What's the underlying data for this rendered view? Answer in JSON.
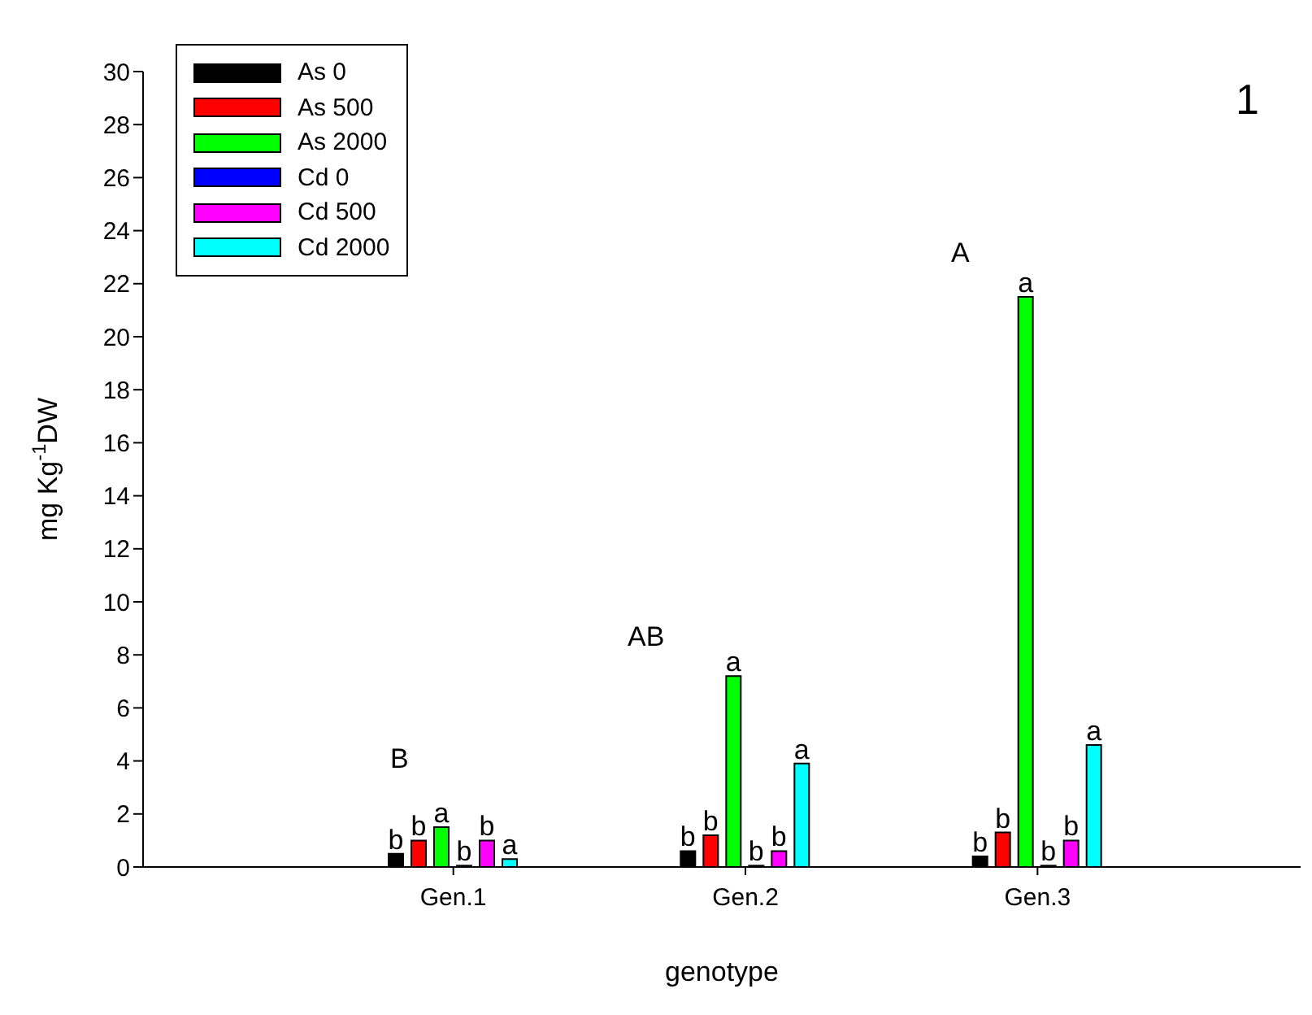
{
  "chart_data": {
    "type": "bar",
    "xlabel": "genotype",
    "ylabel": "mg Kg$^{-1}$DW",
    "categories": [
      "Gen.1",
      "Gen.2",
      "Gen.3"
    ],
    "series": [
      {
        "name": "As 0",
        "color": "#000000",
        "values": [
          0.5,
          0.6,
          0.4
        ],
        "value_labels": [
          "b",
          "b",
          "b"
        ]
      },
      {
        "name": "As 500",
        "color": "#ff0000",
        "values": [
          1.0,
          1.2,
          1.3
        ],
        "value_labels": [
          "b",
          "b",
          "b"
        ]
      },
      {
        "name": "As 2000",
        "color": "#00ff00",
        "values": [
          1.5,
          7.2,
          21.5
        ],
        "value_labels": [
          "a",
          "a",
          "a"
        ]
      },
      {
        "name": "Cd 0",
        "color": "#0000ff",
        "values": [
          0.05,
          0.05,
          0.05
        ],
        "value_labels": [
          "b",
          "b",
          "b"
        ]
      },
      {
        "name": "Cd 500",
        "color": "#ff00ff",
        "values": [
          1.0,
          0.6,
          1.0
        ],
        "value_labels": [
          "b",
          "b",
          "b"
        ]
      },
      {
        "name": "Cd 2000",
        "color": "#00ffff",
        "values": [
          0.3,
          3.9,
          4.6
        ],
        "value_labels": [
          "a",
          "a",
          "a"
        ]
      }
    ],
    "ylim": [
      0,
      30
    ],
    "yticks": [
      0,
      2,
      4,
      6,
      8,
      10,
      12,
      14,
      16,
      18,
      20,
      22,
      24,
      26,
      28,
      30
    ],
    "legend": "top left",
    "annotations": [
      "B",
      "AB",
      "A",
      "1"
    ]
  }
}
